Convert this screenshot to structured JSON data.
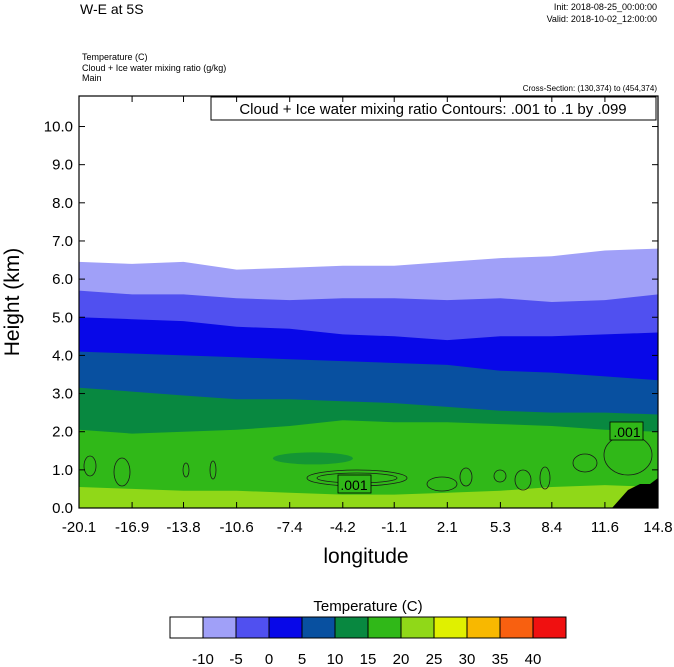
{
  "header": {
    "title": "W-E at 5S",
    "init": "Init: 2018-08-25_00:00:00",
    "valid": "Valid: 2018-10-02_12:00:00",
    "field1": "Temperature   (C)",
    "field2": "Cloud + Ice water mixing ratio   (g/kg)",
    "field3": "Main",
    "cross_section": "Cross-Section: (130,374) to (454,374)"
  },
  "chart_data": {
    "type": "contour-cross-section",
    "title": "W-E at 5S",
    "xlabel": "longitude",
    "ylabel": "Height (km)",
    "xlim": [
      -20.1,
      14.8
    ],
    "ylim": [
      0.0,
      10.8
    ],
    "x_ticks": [
      "-20.1",
      "-16.9",
      "-13.8",
      "-10.6",
      "-7.4",
      "-4.2",
      "-1.1",
      "2.1",
      "5.3",
      "8.4",
      "11.6",
      "14.8"
    ],
    "y_ticks": [
      "0.0",
      "1.0",
      "2.0",
      "3.0",
      "4.0",
      "5.0",
      "6.0",
      "7.0",
      "8.0",
      "9.0",
      "10.0"
    ],
    "contour_info": "Cloud + Ice water mixing ratio Contours: .001 to .1 by .099",
    "contour_labels": [
      ".001",
      ".001"
    ],
    "colorbar": {
      "title": "Temperature  (C)",
      "levels": [
        "-10",
        "-5",
        "0",
        "5",
        "10",
        "15",
        "20",
        "25",
        "30",
        "35",
        "40"
      ],
      "colors": [
        "#ffffff",
        "#a0a0f8",
        "#5050f0",
        "#0808e8",
        "#0850a0",
        "#088840",
        "#30b818",
        "#90d818",
        "#e0f000",
        "#f8b800",
        "#f86010",
        "#f01010"
      ]
    },
    "temperature_bands": [
      {
        "level": "-10 to -5",
        "color": "#a0a0f8",
        "height_x": [
          -20.1,
          -16.9,
          -13.8,
          -10.6,
          -7.4,
          -4.2,
          -1.1,
          2.1,
          5.3,
          8.4,
          11.6,
          14.8
        ],
        "top": [
          6.45,
          6.4,
          6.45,
          6.25,
          6.3,
          6.35,
          6.35,
          6.45,
          6.55,
          6.6,
          6.75,
          6.8
        ]
      },
      {
        "level": "-5 to 0",
        "color": "#5050f0",
        "top": [
          5.7,
          5.6,
          5.6,
          5.5,
          5.45,
          5.5,
          5.5,
          5.45,
          5.5,
          5.4,
          5.45,
          5.6
        ]
      },
      {
        "level": "0 to 5",
        "color": "#0808e8",
        "top": [
          5.0,
          4.95,
          4.9,
          4.75,
          4.7,
          4.55,
          4.5,
          4.4,
          4.5,
          4.5,
          4.55,
          4.6
        ]
      },
      {
        "level": "5 to 10",
        "color": "#0850a0",
        "top": [
          4.1,
          4.05,
          4.0,
          3.95,
          3.9,
          3.85,
          3.8,
          3.75,
          3.6,
          3.55,
          3.45,
          3.35
        ]
      },
      {
        "level": "10 to 15",
        "color": "#088840",
        "top": [
          3.15,
          3.05,
          2.95,
          2.85,
          2.85,
          2.8,
          2.75,
          2.65,
          2.55,
          2.5,
          2.5,
          2.45
        ]
      },
      {
        "level": "15 to 20",
        "color": "#30b818",
        "top": [
          2.05,
          1.95,
          2.0,
          2.05,
          2.15,
          2.3,
          2.25,
          2.25,
          2.2,
          2.15,
          2.05,
          2.0
        ]
      },
      {
        "level": "20 to 25",
        "color": "#90d818",
        "top": [
          0.55,
          0.5,
          0.45,
          0.45,
          0.4,
          0.35,
          0.35,
          0.4,
          0.45,
          0.55,
          0.6,
          0.55
        ]
      }
    ]
  }
}
